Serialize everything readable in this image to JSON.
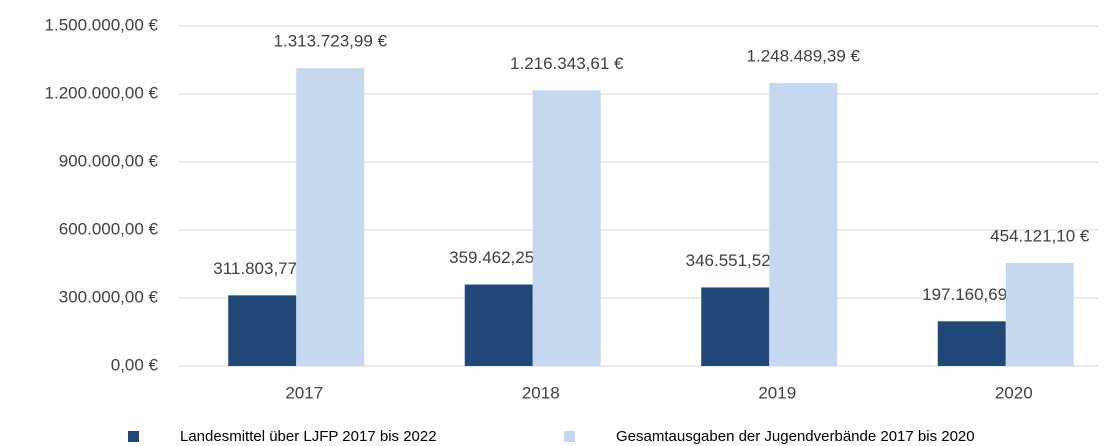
{
  "chart_data": {
    "type": "bar",
    "categories": [
      "2017",
      "2018",
      "2019",
      "2020"
    ],
    "series": [
      {
        "name": "Landesmittel über LJFP 2017 bis 2022",
        "color": "#1f4778",
        "values": [
          311803.77,
          359462.25,
          346551.52,
          197160.69
        ],
        "value_labels": [
          "311.803,77 €",
          "359.462,25 €",
          "346.551,52 €",
          "197.160,69 €"
        ]
      },
      {
        "name": "Gesamtausgaben der Jugendverbände 2017 bis 2020",
        "color": "#c6d8f0",
        "values": [
          1313723.99,
          1216343.61,
          1248489.39,
          454121.1
        ],
        "value_labels": [
          "1.313.723,99 €",
          "1.216.343,61 €",
          "1.248.489,39 €",
          "454.121,10 €"
        ]
      }
    ],
    "ylim": [
      0,
      1500000
    ],
    "yticks": [
      {
        "value": 0,
        "label": "0,00 €"
      },
      {
        "value": 300000,
        "label": "300.000,00 €"
      },
      {
        "value": 600000,
        "label": "600.000,00 €"
      },
      {
        "value": 900000,
        "label": "900.000,00 €"
      },
      {
        "value": 1200000,
        "label": "1.200.000,00 €"
      },
      {
        "value": 1500000,
        "label": "1.500.000,00 €"
      }
    ],
    "grid": true,
    "legend": "bottom"
  }
}
